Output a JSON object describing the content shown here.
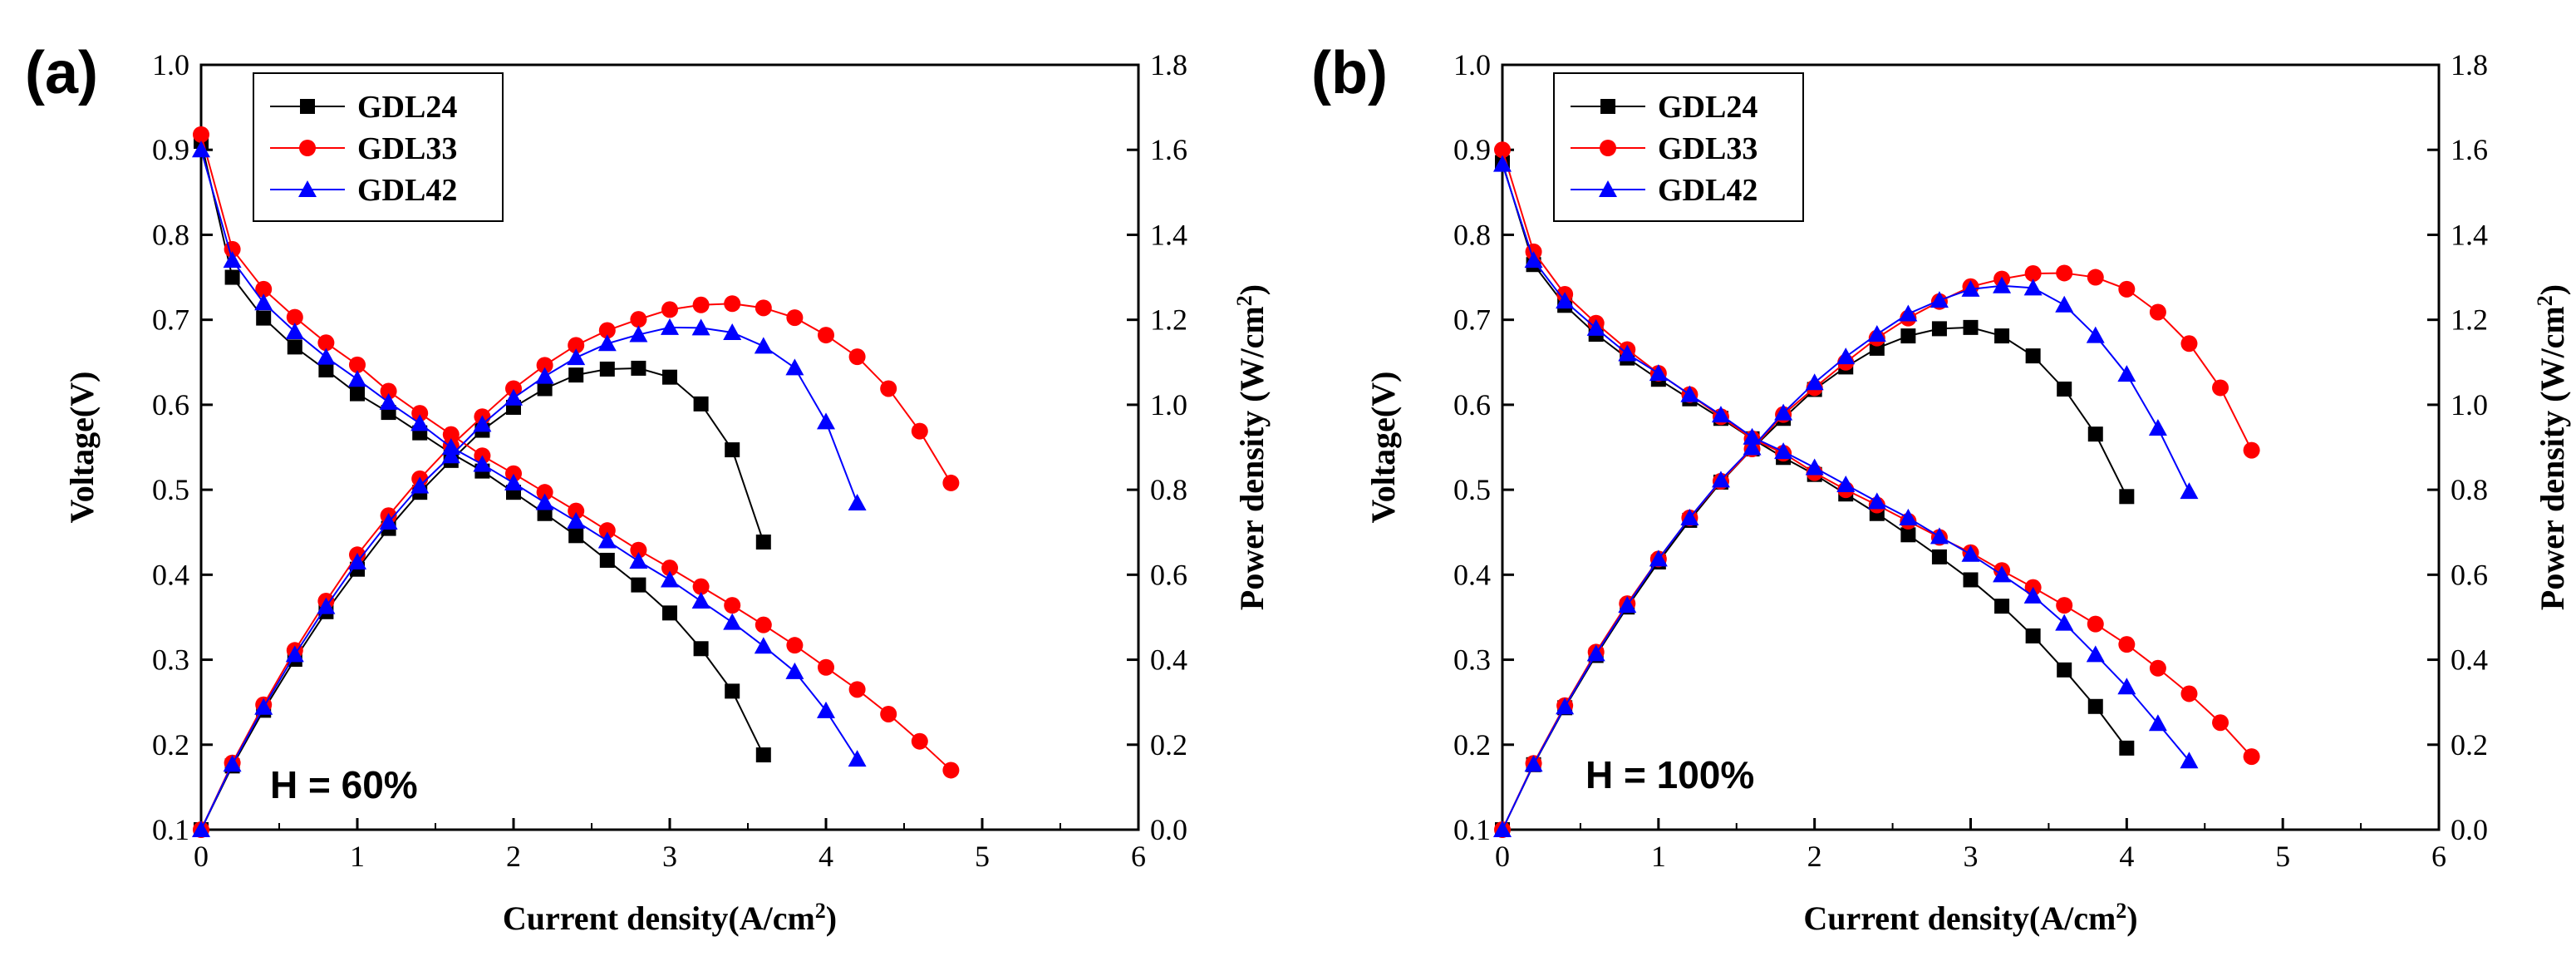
{
  "colors": {
    "GDL24": "#000000",
    "GDL33": "#ff0000",
    "GDL42": "#0000ff"
  },
  "chart_data": [
    {
      "type": "line",
      "panel_label": "(a)",
      "condition": "H = 60%",
      "xlabel": "Current density(A/cm",
      "xlabel_sup": "2",
      "xlabel_end": ")",
      "ylabel_left": "Voltage(V)",
      "ylabel_right": "Power density",
      "ylabel_right_unit": "(W/cm",
      "ylabel_right_sup": "2",
      "ylabel_right_end": ")",
      "xlim": [
        0,
        6
      ],
      "ylim_left": [
        0.1,
        1.0
      ],
      "ylim_right": [
        0.0,
        1.8
      ],
      "xticks": [
        "0",
        "1",
        "2",
        "3",
        "4",
        "5",
        "6"
      ],
      "yticks_left": [
        "0.1",
        "0.2",
        "0.3",
        "0.4",
        "0.5",
        "0.6",
        "0.7",
        "0.8",
        "0.9",
        "1.0"
      ],
      "yticks_right": [
        "0.0",
        "0.2",
        "0.4",
        "0.6",
        "0.8",
        "1.0",
        "1.2",
        "1.4",
        "1.6",
        "1.8"
      ],
      "legend": [
        "GDL24",
        "GDL33",
        "GDL42"
      ],
      "series": [
        {
          "name": "GDL24",
          "marker": "square",
          "x": [
            0,
            0.2,
            0.4,
            0.6,
            0.8,
            1.0,
            1.2,
            1.4,
            1.6,
            1.8,
            2.0,
            2.2,
            2.4,
            2.6,
            2.8,
            3.0,
            3.2,
            3.4,
            3.6
          ],
          "voltage": [
            0.91,
            0.75,
            0.702,
            0.668,
            0.641,
            0.613,
            0.591,
            0.567,
            0.543,
            0.522,
            0.497,
            0.472,
            0.446,
            0.417,
            0.388,
            0.355,
            0.313,
            0.263,
            0.188
          ],
          "power": [
            0,
            0.15,
            0.281,
            0.401,
            0.513,
            0.613,
            0.709,
            0.794,
            0.869,
            0.94,
            0.994,
            1.038,
            1.07,
            1.084,
            1.086,
            1.065,
            1.002,
            0.894,
            0.677
          ]
        },
        {
          "name": "GDL33",
          "marker": "circle",
          "x": [
            0,
            0.2,
            0.4,
            0.6,
            0.8,
            1.0,
            1.2,
            1.4,
            1.6,
            1.8,
            2.0,
            2.2,
            2.4,
            2.6,
            2.8,
            3.0,
            3.2,
            3.4,
            3.6,
            3.8,
            4.0,
            4.2,
            4.4,
            4.6,
            4.8
          ],
          "voltage": [
            0.918,
            0.783,
            0.736,
            0.703,
            0.673,
            0.647,
            0.616,
            0.59,
            0.565,
            0.54,
            0.519,
            0.497,
            0.475,
            0.452,
            0.429,
            0.408,
            0.386,
            0.364,
            0.341,
            0.317,
            0.291,
            0.265,
            0.236,
            0.204,
            0.17
          ],
          "power": [
            0,
            0.157,
            0.294,
            0.422,
            0.538,
            0.647,
            0.739,
            0.826,
            0.904,
            0.972,
            1.038,
            1.093,
            1.14,
            1.175,
            1.201,
            1.224,
            1.235,
            1.238,
            1.228,
            1.205,
            1.164,
            1.113,
            1.038,
            0.938,
            0.816
          ]
        },
        {
          "name": "GDL42",
          "marker": "triangle",
          "x": [
            0,
            0.2,
            0.4,
            0.6,
            0.8,
            1.0,
            1.2,
            1.4,
            1.6,
            1.8,
            2.0,
            2.2,
            2.4,
            2.6,
            2.8,
            3.0,
            3.2,
            3.4,
            3.6,
            3.8,
            4.0,
            4.2
          ],
          "voltage": [
            0.9,
            0.77,
            0.72,
            0.686,
            0.656,
            0.63,
            0.603,
            0.578,
            0.55,
            0.53,
            0.508,
            0.485,
            0.463,
            0.44,
            0.416,
            0.394,
            0.369,
            0.344,
            0.316,
            0.286,
            0.24,
            0.183
          ],
          "power": [
            0,
            0.154,
            0.288,
            0.412,
            0.525,
            0.63,
            0.724,
            0.809,
            0.88,
            0.954,
            1.016,
            1.067,
            1.111,
            1.144,
            1.165,
            1.182,
            1.181,
            1.17,
            1.138,
            1.087,
            0.96,
            0.769
          ]
        }
      ]
    },
    {
      "type": "line",
      "panel_label": "(b)",
      "condition": "H = 100%",
      "xlabel": "Current density(A/cm",
      "xlabel_sup": "2",
      "xlabel_end": ")",
      "ylabel_left": "Voltage(V)",
      "ylabel_right": "Power density",
      "ylabel_right_unit": "(W/cm",
      "ylabel_right_sup": "2",
      "ylabel_right_end": ")",
      "xlim": [
        0,
        6
      ],
      "ylim_left": [
        0.1,
        1.0
      ],
      "ylim_right": [
        0.0,
        1.8
      ],
      "xticks": [
        "0",
        "1",
        "2",
        "3",
        "4",
        "5",
        "6"
      ],
      "yticks_left": [
        "0.1",
        "0.2",
        "0.3",
        "0.4",
        "0.5",
        "0.6",
        "0.7",
        "0.8",
        "0.9",
        "1.0"
      ],
      "yticks_right": [
        "0.0",
        "0.2",
        "0.4",
        "0.6",
        "0.8",
        "1.0",
        "1.2",
        "1.4",
        "1.6",
        "1.8"
      ],
      "legend": [
        "GDL24",
        "GDL33",
        "GDL42"
      ],
      "series": [
        {
          "name": "GDL24",
          "marker": "square",
          "x": [
            0,
            0.2,
            0.4,
            0.6,
            0.8,
            1.0,
            1.2,
            1.4,
            1.6,
            1.8,
            2.0,
            2.2,
            2.4,
            2.6,
            2.8,
            3.0,
            3.2,
            3.4,
            3.6,
            3.8,
            4.0
          ],
          "voltage": [
            0.885,
            0.765,
            0.717,
            0.683,
            0.655,
            0.63,
            0.607,
            0.584,
            0.56,
            0.538,
            0.518,
            0.495,
            0.472,
            0.447,
            0.421,
            0.394,
            0.363,
            0.328,
            0.288,
            0.245,
            0.196
          ],
          "power": [
            0,
            0.153,
            0.287,
            0.41,
            0.524,
            0.63,
            0.728,
            0.818,
            0.896,
            0.968,
            1.036,
            1.089,
            1.133,
            1.162,
            1.179,
            1.182,
            1.162,
            1.115,
            1.037,
            0.931,
            0.784
          ]
        },
        {
          "name": "GDL33",
          "marker": "circle",
          "x": [
            0,
            0.2,
            0.4,
            0.6,
            0.8,
            1.0,
            1.2,
            1.4,
            1.6,
            1.8,
            2.0,
            2.2,
            2.4,
            2.6,
            2.8,
            3.0,
            3.2,
            3.4,
            3.6,
            3.8,
            4.0,
            4.2,
            4.4,
            4.6,
            4.8
          ],
          "voltage": [
            0.9,
            0.78,
            0.73,
            0.696,
            0.665,
            0.637,
            0.612,
            0.586,
            0.56,
            0.543,
            0.52,
            0.5,
            0.482,
            0.463,
            0.444,
            0.426,
            0.405,
            0.385,
            0.364,
            0.342,
            0.318,
            0.29,
            0.26,
            0.226,
            0.186
          ],
          "power": [
            0,
            0.156,
            0.292,
            0.418,
            0.532,
            0.637,
            0.734,
            0.82,
            0.896,
            0.977,
            1.04,
            1.1,
            1.157,
            1.204,
            1.243,
            1.278,
            1.296,
            1.309,
            1.31,
            1.3,
            1.272,
            1.218,
            1.144,
            1.04,
            0.893
          ]
        },
        {
          "name": "GDL42",
          "marker": "triangle",
          "x": [
            0,
            0.2,
            0.4,
            0.6,
            0.8,
            1.0,
            1.2,
            1.4,
            1.6,
            1.8,
            2.0,
            2.2,
            2.4,
            2.6,
            2.8,
            3.0,
            3.2,
            3.4,
            3.6,
            3.8,
            4.0,
            4.2,
            4.4
          ],
          "voltage": [
            0.883,
            0.77,
            0.722,
            0.69,
            0.66,
            0.637,
            0.612,
            0.588,
            0.562,
            0.545,
            0.526,
            0.506,
            0.486,
            0.467,
            0.445,
            0.424,
            0.4,
            0.375,
            0.343,
            0.306,
            0.268,
            0.225,
            0.181
          ],
          "power": [
            0,
            0.154,
            0.289,
            0.414,
            0.528,
            0.637,
            0.734,
            0.823,
            0.899,
            0.981,
            1.052,
            1.113,
            1.166,
            1.214,
            1.246,
            1.272,
            1.28,
            1.275,
            1.235,
            1.163,
            1.072,
            0.945,
            0.796
          ]
        }
      ]
    }
  ]
}
